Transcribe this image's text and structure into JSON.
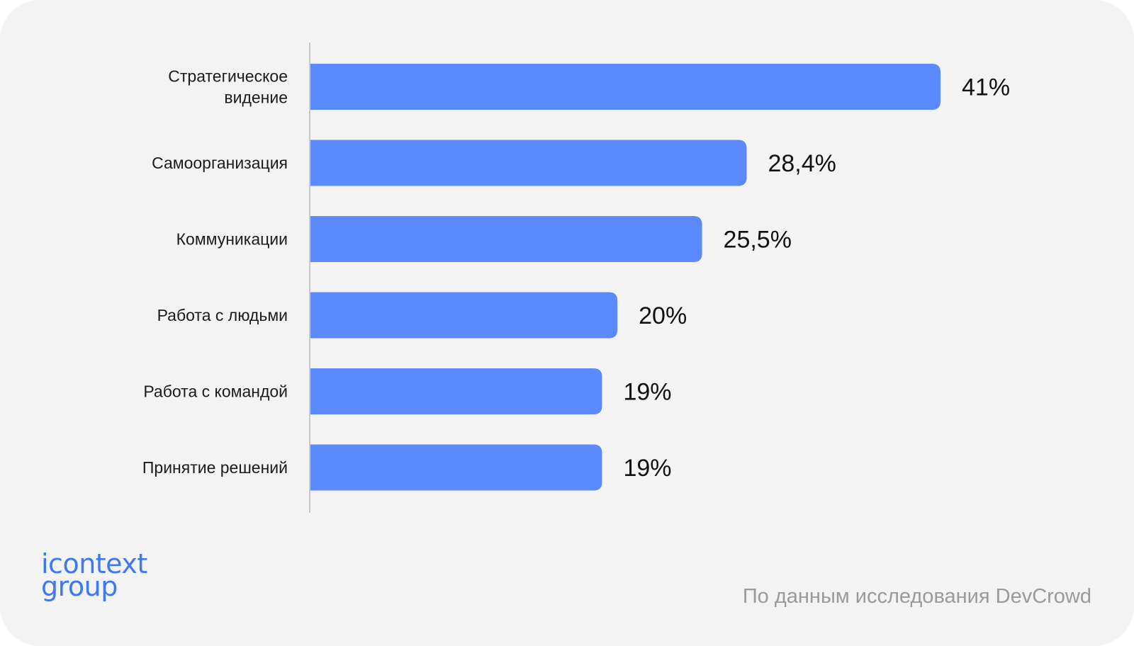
{
  "chart_data": {
    "type": "bar",
    "orientation": "horizontal",
    "categories": [
      [
        "Стратегическое",
        "видение"
      ],
      [
        "Самоорганизация"
      ],
      [
        "Коммуникации"
      ],
      [
        "Работа с людьми"
      ],
      [
        "Работа с командой"
      ],
      [
        "Принятие решений"
      ]
    ],
    "values": [
      41,
      28.4,
      25.5,
      20,
      19,
      19
    ],
    "value_labels": [
      "41%",
      "28,4%",
      "25,5%",
      "20%",
      "19%",
      "19%"
    ],
    "xlim": [
      0,
      41
    ],
    "bar_color": "#5b8afe",
    "grid": false,
    "legend": "none"
  },
  "logo": {
    "line1": "icontext",
    "line2": "group",
    "color": "#3f78f0"
  },
  "source_note": "По данным исследования DevCrowd"
}
